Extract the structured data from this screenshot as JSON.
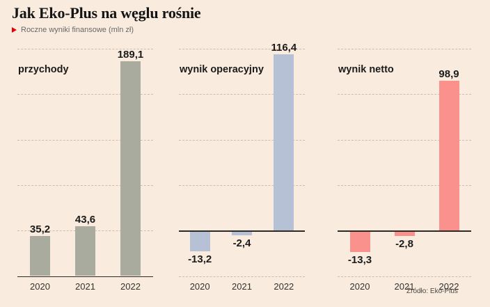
{
  "header": {
    "title": "Jak Eko-Plus na węglu rośnie",
    "subtitle": "Roczne wyniki finansowe (mln zł)",
    "marker_color": "#e3000e"
  },
  "source": "Źródło: Eko-Plus",
  "colors": {
    "background": "#f9ecdf",
    "grid": "#cfbcae",
    "axis": "#2b2a26",
    "text": "#1b1b1b",
    "subtitle_text": "#686868"
  },
  "chart_data": [
    {
      "type": "bar",
      "title": "przychody",
      "categories": [
        "2020",
        "2021",
        "2022"
      ],
      "values": [
        35.2,
        43.6,
        189.1
      ],
      "value_labels": [
        "35,2",
        "43,6",
        "189,1"
      ],
      "bar_color": "#a9ab9f",
      "ylim": [
        0,
        200
      ],
      "grid_step": 40,
      "grid": "dashed",
      "unit": "mln zł"
    },
    {
      "type": "bar",
      "title": "wynik operacyjny",
      "categories": [
        "2020",
        "2021",
        "2022"
      ],
      "values": [
        -13.2,
        -2.4,
        116.4
      ],
      "value_labels": [
        "-13,2",
        "-2,4",
        "116,4"
      ],
      "bar_color": "#b7c1d6",
      "ylim": [
        -30,
        120
      ],
      "grid_step": 30,
      "grid": "dashed",
      "unit": "mln zł"
    },
    {
      "type": "bar",
      "title": "wynik netto",
      "categories": [
        "2020",
        "2021",
        "2022"
      ],
      "values": [
        -13.3,
        -2.8,
        98.9
      ],
      "value_labels": [
        "-13,3",
        "-2,8",
        "98,9"
      ],
      "bar_color": "#fa918c",
      "ylim": [
        -30,
        120
      ],
      "grid_step": 30,
      "grid": "dashed",
      "unit": "mln zł"
    }
  ]
}
